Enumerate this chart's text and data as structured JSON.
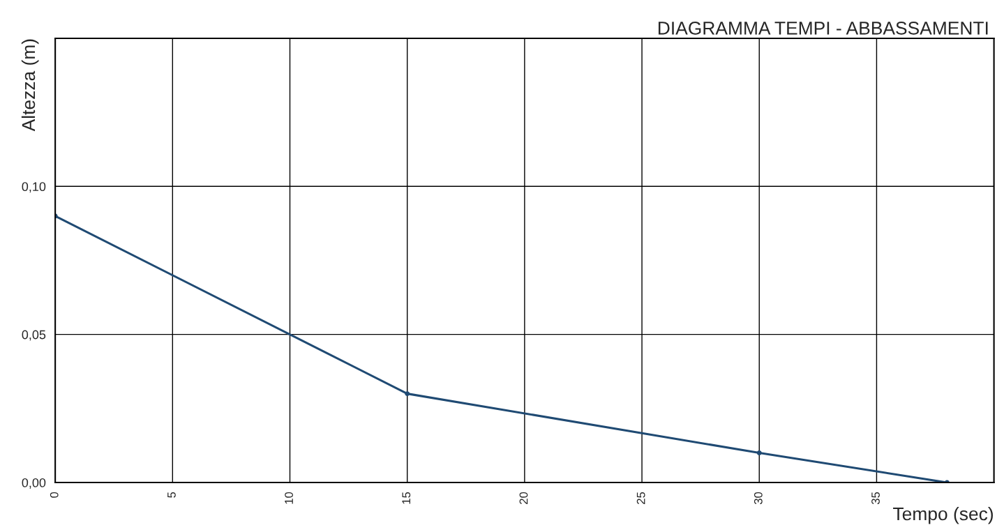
{
  "chart_data": {
    "type": "line",
    "title": "DIAGRAMMA TEMPI - ABBASSAMENTI",
    "xlabel": "Tempo (sec)",
    "ylabel": "Altezza (m)",
    "x": [
      0,
      15,
      30,
      38
    ],
    "series": [
      {
        "color": "#1f4a73",
        "values": [
          0.09,
          0.03,
          0.01,
          0.0
        ]
      }
    ],
    "xlim": [
      0,
      40
    ],
    "xticks": [
      0,
      5,
      10,
      15,
      20,
      25,
      30,
      35
    ],
    "ylim": [
      0,
      0.15
    ],
    "yticks": [
      {
        "value": 0,
        "label": "0,00"
      },
      {
        "value": 0.05,
        "label": "0,05"
      },
      {
        "value": 0.1,
        "label": "0,10"
      }
    ],
    "grid": true,
    "marker": "circle",
    "line_style": "solid"
  }
}
